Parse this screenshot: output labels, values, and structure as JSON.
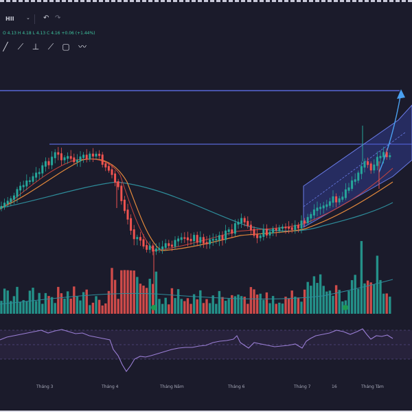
{
  "header": {
    "symbol": "HII"
  },
  "ohlc_text": "O 4.13  H 4.18  L 4.13  C 4.16  +0.06 (+1.44%)",
  "toolbar": {
    "tools": [
      {
        "name": "ray-tool-icon",
        "glyph": "╱"
      },
      {
        "name": "trend-line-tool-icon",
        "glyph": "⟋"
      },
      {
        "name": "fib-tool-icon",
        "glyph": "⊥"
      },
      {
        "name": "brush-tool-icon",
        "glyph": "⟋"
      },
      {
        "name": "rectangle-tool-icon",
        "glyph": "▢"
      },
      {
        "name": "path-tool-icon",
        "glyph": "〰"
      }
    ]
  },
  "chart_data": {
    "type": "candlestick",
    "x_tick_labels": [
      "Tháng 3",
      "Tháng 4",
      "Tháng Năm",
      "Tháng 6",
      "Tháng 7",
      "16",
      "Tháng Tám"
    ],
    "panels": [
      "price",
      "volume",
      "oscillator"
    ],
    "colors": {
      "up": "#26a69a",
      "down": "#ef5350",
      "horizontal_line": "#5868d8",
      "channel_fill": "#3a4ab8",
      "ma_orange": "#e58a3c",
      "ma_red": "#c9463d",
      "ma_teal": "#2e8c9a",
      "oscillator": "#9b7fd6",
      "arrow": "#4aa0f0"
    }
  }
}
